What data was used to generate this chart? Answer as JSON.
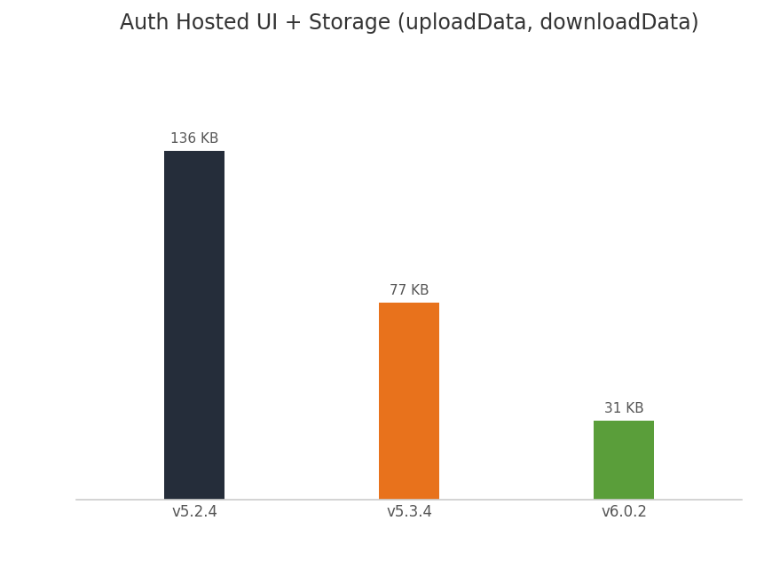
{
  "title": "Auth Hosted UI + Storage (uploadData, downloadData)",
  "categories": [
    "v5.2.4",
    "v5.3.4",
    "v6.0.2"
  ],
  "values": [
    136,
    77,
    31
  ],
  "labels": [
    "136 KB",
    "77 KB",
    "31 KB"
  ],
  "bar_colors": [
    "#252d3a",
    "#e8721c",
    "#5a9e3a"
  ],
  "background_color": "#ffffff",
  "title_fontsize": 17,
  "label_fontsize": 11,
  "tick_fontsize": 12,
  "ylabel_fontsize": 12,
  "ylim": [
    0,
    175
  ],
  "bar_width": 0.28,
  "figsize": [
    8.62,
    6.4
  ],
  "dpi": 100
}
